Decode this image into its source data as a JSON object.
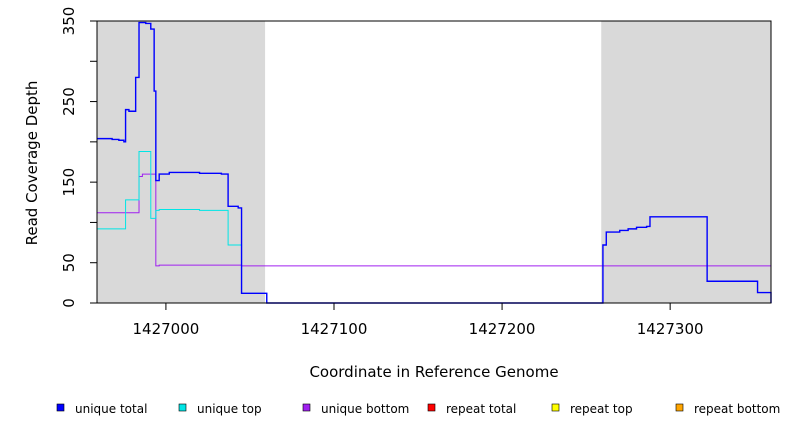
{
  "chart_data": {
    "type": "line",
    "xlabel": "Coordinate in Reference Genome",
    "ylabel": "Read Coverage Depth",
    "xlim": [
      1426959,
      1427360
    ],
    "ylim": [
      0,
      350
    ],
    "x_ticks": [
      1427000,
      1427100,
      1427200,
      1427300
    ],
    "x_tick_labels": [
      "1427000",
      "1427100",
      "1427200",
      "1427300"
    ],
    "y_ticks": [
      0,
      50,
      150,
      250,
      350
    ],
    "y_tick_labels": [
      "0",
      "50",
      "150",
      "250",
      "350"
    ],
    "shaded_regions": [
      [
        1426959,
        1427059
      ],
      [
        1427259,
        1427360
      ]
    ],
    "shading_color": "#d9d9d9",
    "series": [
      {
        "name": "unique total",
        "color": "#0000ff",
        "x": [
          1426959,
          1426968,
          1426972,
          1426975,
          1426976,
          1426978,
          1426982,
          1426984,
          1426988,
          1426991,
          1426993,
          1426994,
          1426996,
          1427002,
          1427010,
          1427020,
          1427033,
          1427037,
          1427043,
          1427045,
          1427058,
          1427060,
          1427259,
          1427260,
          1427262,
          1427270,
          1427275,
          1427280,
          1427286,
          1427288,
          1427320,
          1427322,
          1427352,
          1427360
        ],
        "y": [
          204,
          203,
          202,
          200,
          240,
          238,
          280,
          348,
          347,
          340,
          263,
          152,
          160,
          162,
          162,
          161,
          160,
          120,
          118,
          12,
          12,
          0,
          0,
          72,
          88,
          90,
          92,
          94,
          95,
          107,
          107,
          27,
          13,
          0
        ]
      },
      {
        "name": "unique top",
        "color": "#00e5e5",
        "x": [
          1426959,
          1426976,
          1426984,
          1426991,
          1426994,
          1426996,
          1427020,
          1427037,
          1427045,
          1427058,
          1427060,
          1427360
        ],
        "y": [
          92,
          128,
          188,
          105,
          115,
          116,
          115,
          72,
          12,
          12,
          0,
          0
        ]
      },
      {
        "name": "unique bottom",
        "color": "#a020f0",
        "x": [
          1426959,
          1426984,
          1426986,
          1426994,
          1426996,
          1427045,
          1427360
        ],
        "y": [
          112,
          157,
          160,
          46,
          47,
          46,
          0
        ]
      },
      {
        "name": "repeat total",
        "color": "#ff0000",
        "x": [
          1426959,
          1427360
        ],
        "y": [
          0,
          0
        ]
      },
      {
        "name": "repeat top",
        "color": "#ffff00",
        "x": [
          1426959,
          1427360
        ],
        "y": [
          0,
          0
        ]
      },
      {
        "name": "repeat bottom",
        "color": "#ffa500",
        "x": [
          1426959,
          1427360
        ],
        "y": [
          0,
          0
        ]
      }
    ],
    "legend": {
      "position": "bottom",
      "entries": [
        {
          "label": "unique total",
          "color": "#0000ff"
        },
        {
          "label": "unique top",
          "color": "#00e5e5"
        },
        {
          "label": "unique bottom",
          "color": "#a020f0"
        },
        {
          "label": "repeat total",
          "color": "#ff0000"
        },
        {
          "label": "repeat top",
          "color": "#ffff00"
        },
        {
          "label": "repeat bottom",
          "color": "#ffa500"
        }
      ]
    },
    "grid": false
  }
}
